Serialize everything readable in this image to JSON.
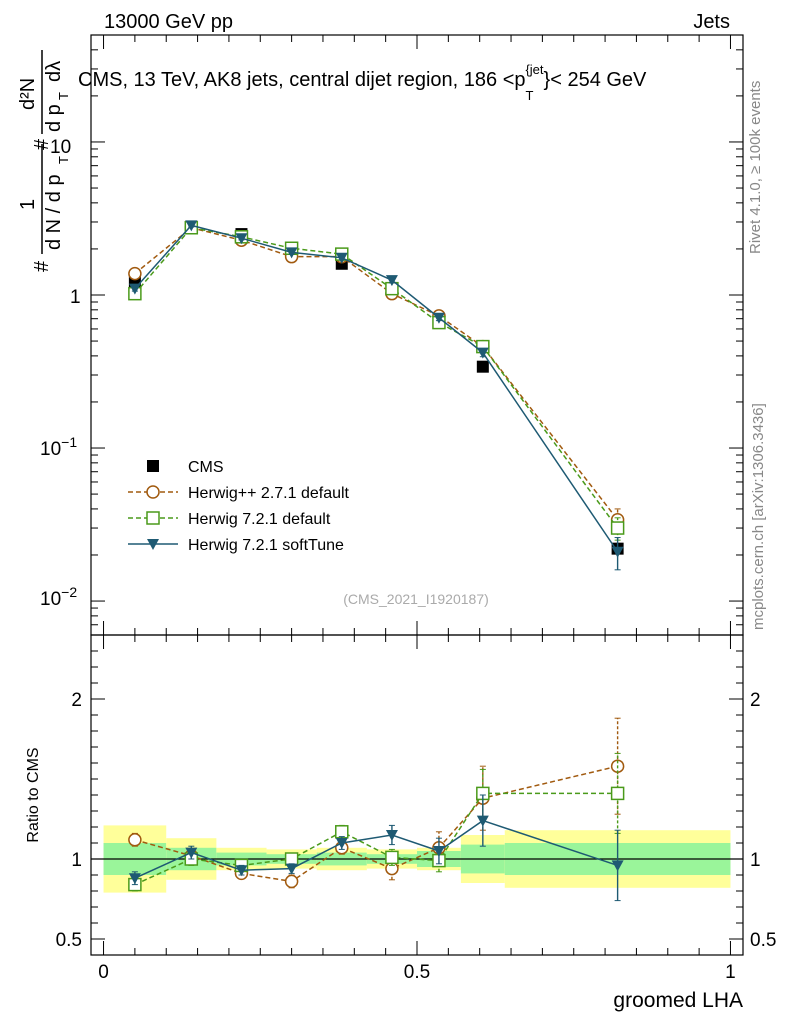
{
  "header": {
    "left": "13000 GeV pp",
    "right": "Jets"
  },
  "side_text": {
    "rivet": "Rivet 4.1.0, ≥ 100k events",
    "mcplots": "mcplots.cern.ch [arXiv:1306.3436]"
  },
  "watermark": "(CMS_2021_I1920187)",
  "chart_data": [
    {
      "type": "line",
      "panel": "main",
      "title": "CMS, 13 TeV, AK8 jets, central dijet region, 186 < p_T^{jet} < 254 GeV",
      "title_parts": {
        "prefix": "CMS, 13 TeV, AK8 jets, central dijet region, 186 <p",
        "sub": "T",
        "sup": "{jet",
        "suffix": "}< 254 GeV"
      },
      "ylabel": "1/(dN/dpT) d²N/(dpT dλ)",
      "ylabel_parts": {
        "a": "#",
        "one": "1",
        "den": "d N / d p",
        "t": "T",
        "num": "d²N",
        "d2": "d p",
        "lam": "dλ"
      },
      "yscale": "log",
      "ylim": [
        0.006,
        50
      ],
      "xlim": [
        -0.02,
        1.02
      ],
      "ytick_labels": {
        "e1": "10",
        "e1exp": "",
        "one": "1",
        "em1": "10",
        "em1exp": "−1",
        "em2": "10",
        "em2exp": "−2"
      },
      "x": [
        0.05,
        0.14,
        0.22,
        0.3,
        0.38,
        0.46,
        0.535,
        0.605,
        0.82
      ],
      "series": [
        {
          "name": "CMS",
          "color": "#000000",
          "marker": "square-filled",
          "linestyle": "none",
          "values": [
            1.22,
            2.8,
            2.5,
            2.0,
            1.6,
            1.08,
            0.68,
            0.34,
            0.022
          ],
          "errors": [
            0.06,
            0.1,
            0.08,
            0.06,
            0.05,
            0.04,
            0.03,
            0.015,
            0.0015
          ]
        },
        {
          "name": "Herwig++ 2.7.1 default",
          "color": "#a15a0f",
          "marker": "circle-open",
          "linestyle": "dashed",
          "values": [
            1.38,
            2.75,
            2.28,
            1.78,
            1.78,
            1.02,
            0.73,
            0.46,
            0.034
          ],
          "errors": [
            0.05,
            0.07,
            0.06,
            0.05,
            0.05,
            0.04,
            0.03,
            0.025,
            0.006
          ]
        },
        {
          "name": "Herwig 7.2.1 default",
          "color": "#4a9a1a",
          "marker": "square-open",
          "linestyle": "dashed",
          "values": [
            1.02,
            2.75,
            2.4,
            2.02,
            1.85,
            1.1,
            0.66,
            0.46,
            0.03
          ],
          "errors": [
            0.04,
            0.07,
            0.06,
            0.05,
            0.05,
            0.04,
            0.03,
            0.025,
            0.005
          ]
        },
        {
          "name": "Herwig 7.2.1 softTune",
          "color": "#1e5a73",
          "marker": "triangle-down",
          "linestyle": "solid",
          "values": [
            1.1,
            2.85,
            2.35,
            1.9,
            1.75,
            1.25,
            0.71,
            0.42,
            0.021
          ],
          "errors": [
            0.04,
            0.07,
            0.06,
            0.05,
            0.05,
            0.05,
            0.03,
            0.025,
            0.005
          ]
        }
      ]
    },
    {
      "type": "line",
      "panel": "ratio",
      "ylabel": "Ratio to CMS",
      "xlabel": "groomed LHA",
      "ylim": [
        0.4,
        2.4
      ],
      "xlim": [
        -0.02,
        1.02
      ],
      "x_ticks": [
        0,
        0.5,
        1
      ],
      "x_tick_labels": [
        "0",
        "0.5",
        "1"
      ],
      "y_ticks": [
        0.5,
        1,
        2
      ],
      "y_tick_labels": [
        "0.5",
        "1",
        "2"
      ],
      "x": [
        0.05,
        0.14,
        0.22,
        0.3,
        0.38,
        0.46,
        0.535,
        0.605,
        0.82
      ],
      "bins": [
        [
          0.0,
          0.1
        ],
        [
          0.1,
          0.18
        ],
        [
          0.18,
          0.26
        ],
        [
          0.26,
          0.34
        ],
        [
          0.34,
          0.42
        ],
        [
          0.42,
          0.5
        ],
        [
          0.5,
          0.57
        ],
        [
          0.57,
          0.64
        ],
        [
          0.64,
          1.0
        ]
      ],
      "band_outer": [
        0.21,
        0.13,
        0.07,
        0.06,
        0.07,
        0.06,
        0.07,
        0.15,
        0.18
      ],
      "band_inner": [
        0.1,
        0.07,
        0.04,
        0.03,
        0.04,
        0.03,
        0.05,
        0.09,
        0.1
      ],
      "band_colors": {
        "outer": "#ffff9a",
        "inner": "#9af59a"
      },
      "series": [
        {
          "name": "Herwig++ 2.7.1 default",
          "color": "#a15a0f",
          "marker": "circle-open",
          "linestyle": "dashed",
          "values": [
            1.12,
            1.02,
            0.91,
            0.86,
            1.07,
            0.94,
            1.07,
            1.38,
            1.58
          ],
          "errors": [
            0.04,
            0.04,
            0.03,
            0.04,
            0.04,
            0.07,
            0.1,
            0.2,
            0.3
          ]
        },
        {
          "name": "Herwig 7.2.1 default",
          "color": "#4a9a1a",
          "marker": "square-open",
          "linestyle": "dashed",
          "values": [
            0.84,
            1.0,
            0.96,
            1.0,
            1.17,
            1.01,
            0.99,
            1.41,
            1.41
          ],
          "errors": [
            0.04,
            0.04,
            0.03,
            0.03,
            0.04,
            0.05,
            0.07,
            0.15,
            0.25
          ]
        },
        {
          "name": "Herwig 7.2.1 softTune",
          "color": "#1e5a73",
          "marker": "triangle-down",
          "linestyle": "solid",
          "values": [
            0.88,
            1.04,
            0.93,
            0.94,
            1.1,
            1.15,
            1.05,
            1.24,
            0.96
          ],
          "errors": [
            0.04,
            0.04,
            0.03,
            0.03,
            0.04,
            0.06,
            0.08,
            0.16,
            0.22
          ]
        }
      ]
    }
  ]
}
